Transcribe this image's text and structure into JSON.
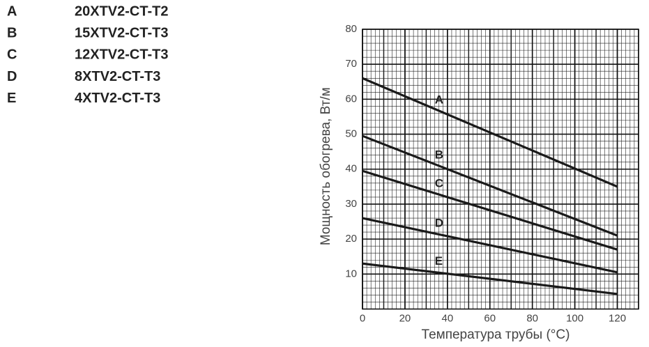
{
  "chart_data": {
    "type": "line",
    "xlabel": "Температура трубы (°C)",
    "ylabel": "Мощность обогрева, Вт/м",
    "x": [
      0,
      120
    ],
    "series": [
      {
        "name": "A",
        "label": "20XTV2-CT-T2",
        "color": "#1a1a1a",
        "values": [
          66,
          35
        ]
      },
      {
        "name": "B",
        "label": "15XTV2-CT-T3",
        "color": "#1a1a1a",
        "values": [
          49.5,
          21
        ]
      },
      {
        "name": "C",
        "label": "12XTV2-CT-T3",
        "color": "#1a1a1a",
        "values": [
          39.5,
          17
        ]
      },
      {
        "name": "D",
        "label": "8XTV2-CT-T3",
        "color": "#1a1a1a",
        "values": [
          26,
          10.5
        ]
      },
      {
        "name": "E",
        "label": "4XTV2-CT-T3",
        "color": "#1a1a1a",
        "values": [
          13,
          4.3
        ]
      }
    ],
    "xlim": [
      0,
      130
    ],
    "xticks": [
      0,
      20,
      40,
      60,
      80,
      100,
      120
    ],
    "ylim": [
      0,
      80
    ],
    "yticks": [
      10,
      20,
      30,
      40,
      50,
      60,
      70,
      80
    ],
    "grid": true
  }
}
